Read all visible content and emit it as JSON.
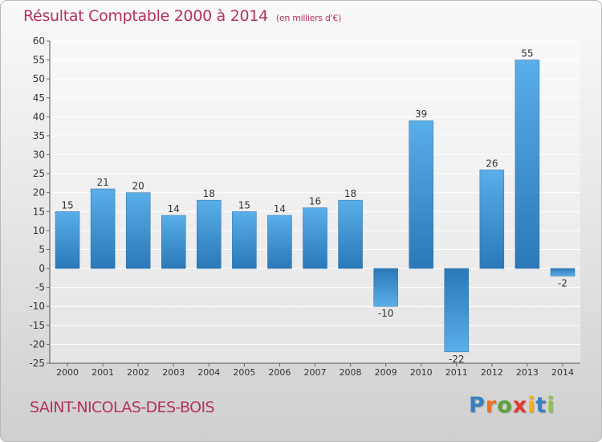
{
  "header": {
    "title": "Résultat Comptable 2000 à 2014",
    "subtitle": "(en milliers d'€)"
  },
  "footer": {
    "commune": "SAINT-NICOLAS-DES-BOIS",
    "logo": {
      "text": "Proxiti",
      "letter_colors": [
        "#3a7fc1",
        "#e8731f",
        "#5aa43a",
        "#e23a2f",
        "#f0b21c",
        "#3a7fc1",
        "#8cc63f"
      ]
    }
  },
  "colors": {
    "accent": "#b5325e",
    "bar_top": "#5aaee9",
    "bar_bottom": "#2a78b8",
    "axis_text": "#333333"
  },
  "chart_data": {
    "type": "bar",
    "title": "Résultat Comptable 2000 à 2014",
    "subtitle": "(en milliers d'€)",
    "categories": [
      "2000",
      "2001",
      "2002",
      "2003",
      "2004",
      "2005",
      "2006",
      "2007",
      "2008",
      "2009",
      "2010",
      "2011",
      "2012",
      "2013",
      "2014"
    ],
    "values": [
      15,
      21,
      20,
      14,
      18,
      15,
      14,
      16,
      18,
      -10,
      39,
      -22,
      26,
      55,
      -2
    ],
    "ylim": [
      -25,
      60
    ],
    "yticks": [
      60,
      55,
      50,
      45,
      40,
      35,
      30,
      25,
      20,
      15,
      10,
      5,
      0,
      -5,
      -10,
      -15,
      -20,
      -25
    ],
    "grid": true,
    "legend": "none"
  }
}
